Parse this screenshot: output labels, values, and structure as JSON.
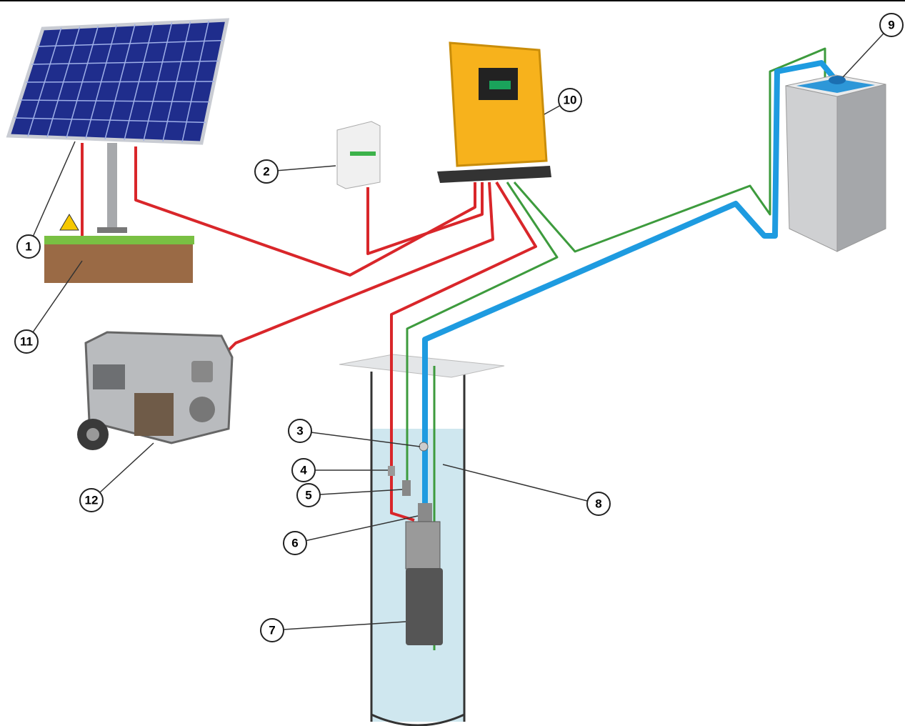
{
  "nodes": [
    {
      "label": "1"
    },
    {
      "label": "2"
    },
    {
      "label": "3"
    },
    {
      "label": "4"
    },
    {
      "label": "5"
    },
    {
      "label": "6"
    },
    {
      "label": "7"
    },
    {
      "label": "8"
    },
    {
      "label": "9"
    },
    {
      "label": "10"
    },
    {
      "label": "11"
    },
    {
      "label": "12"
    }
  ]
}
